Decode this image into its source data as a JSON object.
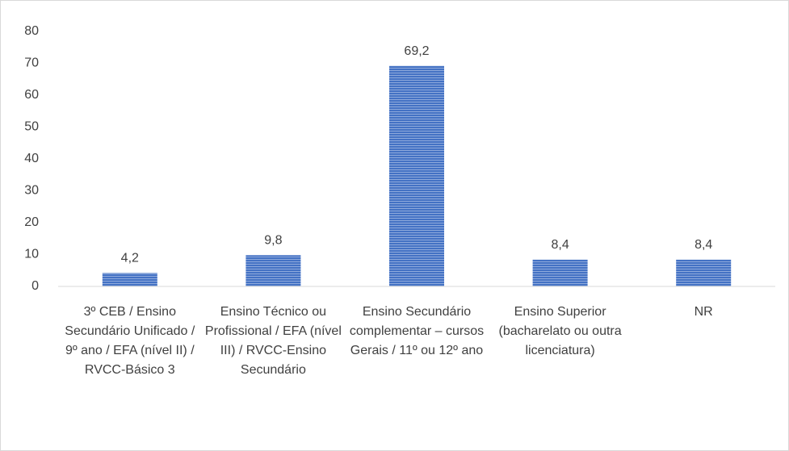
{
  "chart_data": {
    "type": "bar",
    "categories": [
      "3º CEB / Ensino Secundário Unificado / 9º ano / EFA (nível II) / RVCC-Básico 3",
      "Ensino Técnico ou Profissional / EFA (nível III) / RVCC-Ensino Secundário",
      "Ensino Secundário complementar – cursos Gerais / 11º ou 12º ano",
      "Ensino Superior (bacharelato ou outra licenciatura)",
      "NR"
    ],
    "values": [
      4.2,
      9.8,
      69.2,
      8.4,
      8.4
    ],
    "value_labels": [
      "4,2",
      "9,8",
      "69,2",
      "8,4",
      "8,4"
    ],
    "color": "#4472c4",
    "ylim": [
      0,
      80
    ],
    "yticks": [
      0,
      10,
      20,
      30,
      40,
      50,
      60,
      70,
      80
    ],
    "grid": false
  }
}
